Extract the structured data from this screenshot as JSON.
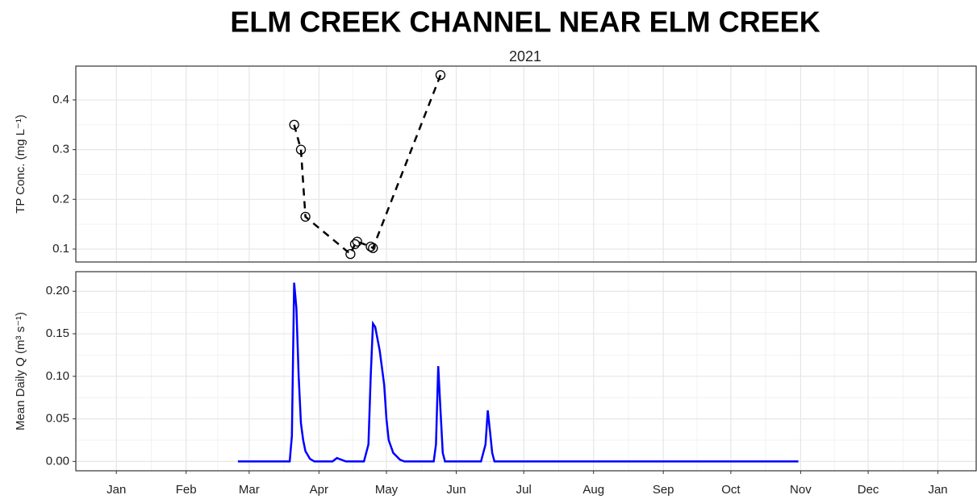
{
  "chart_data": [
    {
      "type": "scatter",
      "title": "ELM CREEK CHANNEL NEAR ELM CREEK",
      "subtitle": "2021",
      "ylabel": "TP Conc. (mg L⁻¹)",
      "color": "#000000",
      "linestyle": "dashed",
      "grid": true,
      "x": [
        79,
        82,
        84,
        104,
        106,
        107,
        113,
        114,
        144
      ],
      "values": [
        0.35,
        0.3,
        0.165,
        0.09,
        0.11,
        0.115,
        0.105,
        0.102,
        0.45
      ],
      "xlim": [
        -18,
        382
      ],
      "ylim": [
        0.074,
        0.468
      ],
      "yticks": [
        0.1,
        0.2,
        0.3,
        0.4
      ]
    },
    {
      "type": "line",
      "ylabel": "Mean Daily Q (m³ s⁻¹)",
      "color": "#0000ff",
      "grid": true,
      "x": [
        54,
        77,
        78,
        79,
        80,
        81,
        82,
        83,
        84,
        86,
        88,
        96,
        98,
        100,
        102,
        110,
        112,
        113,
        114,
        115,
        117,
        119,
        120,
        121,
        123,
        126,
        128,
        141,
        142,
        143,
        144,
        145,
        146,
        162,
        164,
        165,
        166,
        167,
        168,
        303
      ],
      "values": [
        0,
        0,
        0.03,
        0.21,
        0.18,
        0.1,
        0.045,
        0.025,
        0.012,
        0.003,
        0,
        0,
        0.004,
        0.002,
        0,
        0,
        0.02,
        0.1,
        0.162,
        0.158,
        0.13,
        0.09,
        0.05,
        0.025,
        0.01,
        0.002,
        0,
        0,
        0.02,
        0.112,
        0.06,
        0.01,
        0,
        0,
        0.02,
        0.06,
        0.035,
        0.01,
        0,
        0
      ],
      "xlim": [
        -18,
        382
      ],
      "ylim": [
        -0.011,
        0.223
      ],
      "yticks": [
        {
          "value": 0,
          "label": "0.00"
        },
        0.05,
        {
          "value": 0.1,
          "label": "0.10"
        },
        0.15,
        {
          "value": 0.2,
          "label": "0.20"
        }
      ],
      "xticks": [
        {
          "value": 0,
          "label": "Jan"
        },
        {
          "value": 31,
          "label": "Feb"
        },
        {
          "value": 59,
          "label": "Mar"
        },
        {
          "value": 90,
          "label": "Apr"
        },
        {
          "value": 120,
          "label": "May"
        },
        {
          "value": 151,
          "label": "Jun"
        },
        {
          "value": 181,
          "label": "Jul"
        },
        {
          "value": 212,
          "label": "Aug"
        },
        {
          "value": 243,
          "label": "Sep"
        },
        {
          "value": 273,
          "label": "Oct"
        },
        {
          "value": 304,
          "label": "Nov"
        },
        {
          "value": 334,
          "label": "Dec"
        },
        {
          "value": 365,
          "label": "Jan"
        }
      ]
    }
  ]
}
